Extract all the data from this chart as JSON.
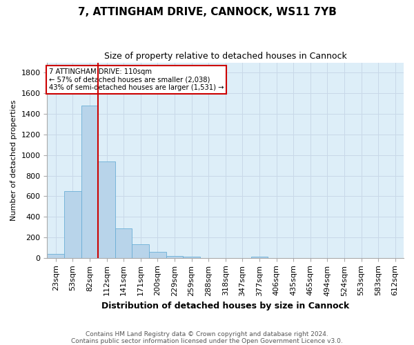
{
  "title1": "7, ATTINGHAM DRIVE, CANNOCK, WS11 7YB",
  "title2": "Size of property relative to detached houses in Cannock",
  "xlabel": "Distribution of detached houses by size in Cannock",
  "ylabel": "Number of detached properties",
  "footnote1": "Contains HM Land Registry data © Crown copyright and database right 2024.",
  "footnote2": "Contains public sector information licensed under the Open Government Licence v3.0.",
  "categories": [
    "23sqm",
    "53sqm",
    "82sqm",
    "112sqm",
    "141sqm",
    "171sqm",
    "200sqm",
    "229sqm",
    "259sqm",
    "288sqm",
    "318sqm",
    "347sqm",
    "377sqm",
    "406sqm",
    "435sqm",
    "465sqm",
    "494sqm",
    "524sqm",
    "553sqm",
    "583sqm",
    "612sqm"
  ],
  "values": [
    40,
    650,
    1480,
    940,
    290,
    130,
    60,
    20,
    10,
    0,
    0,
    0,
    10,
    0,
    0,
    0,
    0,
    0,
    0,
    0,
    0
  ],
  "bar_color": "#b8d4ea",
  "bar_edge_color": "#6aaed6",
  "red_line_x": 2.5,
  "red_line_color": "#cc0000",
  "annotation_text1": "7 ATTINGHAM DRIVE: 110sqm",
  "annotation_text2": "← 57% of detached houses are smaller (2,038)",
  "annotation_text3": "43% of semi-detached houses are larger (1,531) →",
  "annotation_box_color": "white",
  "annotation_box_edge": "#cc0000",
  "ylim": [
    0,
    1900
  ],
  "yticks": [
    0,
    200,
    400,
    600,
    800,
    1000,
    1200,
    1400,
    1600,
    1800
  ]
}
